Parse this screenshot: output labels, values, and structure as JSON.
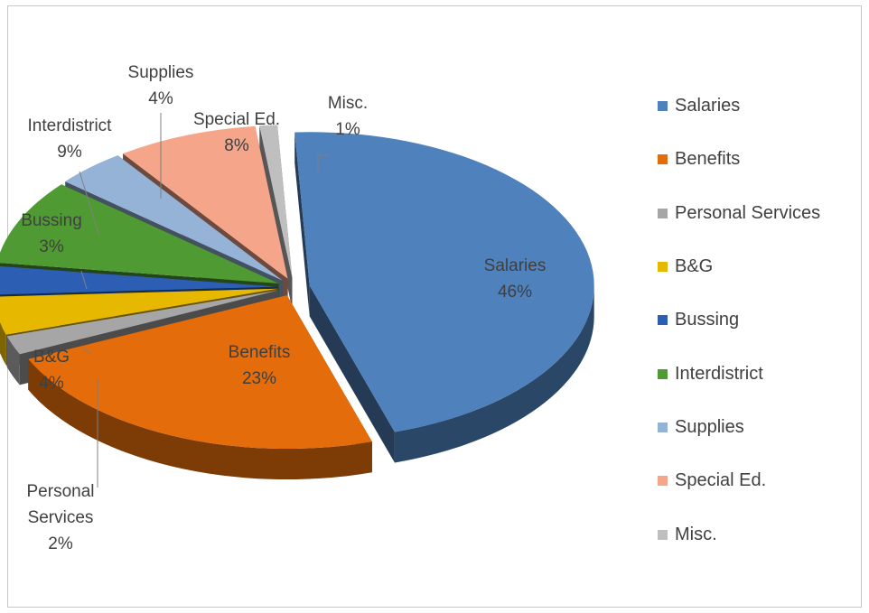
{
  "chart_data": {
    "type": "pie",
    "style": "3d-exploded",
    "categories": [
      "Salaries",
      "Benefits",
      "Personal Services",
      "B&G",
      "Bussing",
      "Interdistrict",
      "Supplies",
      "Special Ed.",
      "Misc."
    ],
    "values": [
      46,
      23,
      2,
      4,
      3,
      9,
      4,
      8,
      1
    ],
    "value_labels": [
      "46%",
      "23%",
      "2%",
      "4%",
      "3%",
      "9%",
      "4%",
      "8%",
      "1%"
    ],
    "colors": [
      "#4F81BD",
      "#E46C0A",
      "#A6A6A6",
      "#E6B800",
      "#2C5FB3",
      "#4F9A33",
      "#95B3D7",
      "#F4A58A",
      "#BFBFBF"
    ],
    "title": "",
    "legend_position": "right",
    "label_lines": [
      [
        "Salaries",
        "46%"
      ],
      [
        "Benefits",
        "23%"
      ],
      [
        "Personal",
        "Services",
        "2%"
      ],
      [
        "B&G",
        "4%"
      ],
      [
        "Bussing",
        "3%"
      ],
      [
        "Interdistrict",
        "9%"
      ],
      [
        "Supplies",
        "4%"
      ],
      [
        "Special Ed.",
        "8%"
      ],
      [
        "Misc.",
        "1%"
      ]
    ]
  }
}
